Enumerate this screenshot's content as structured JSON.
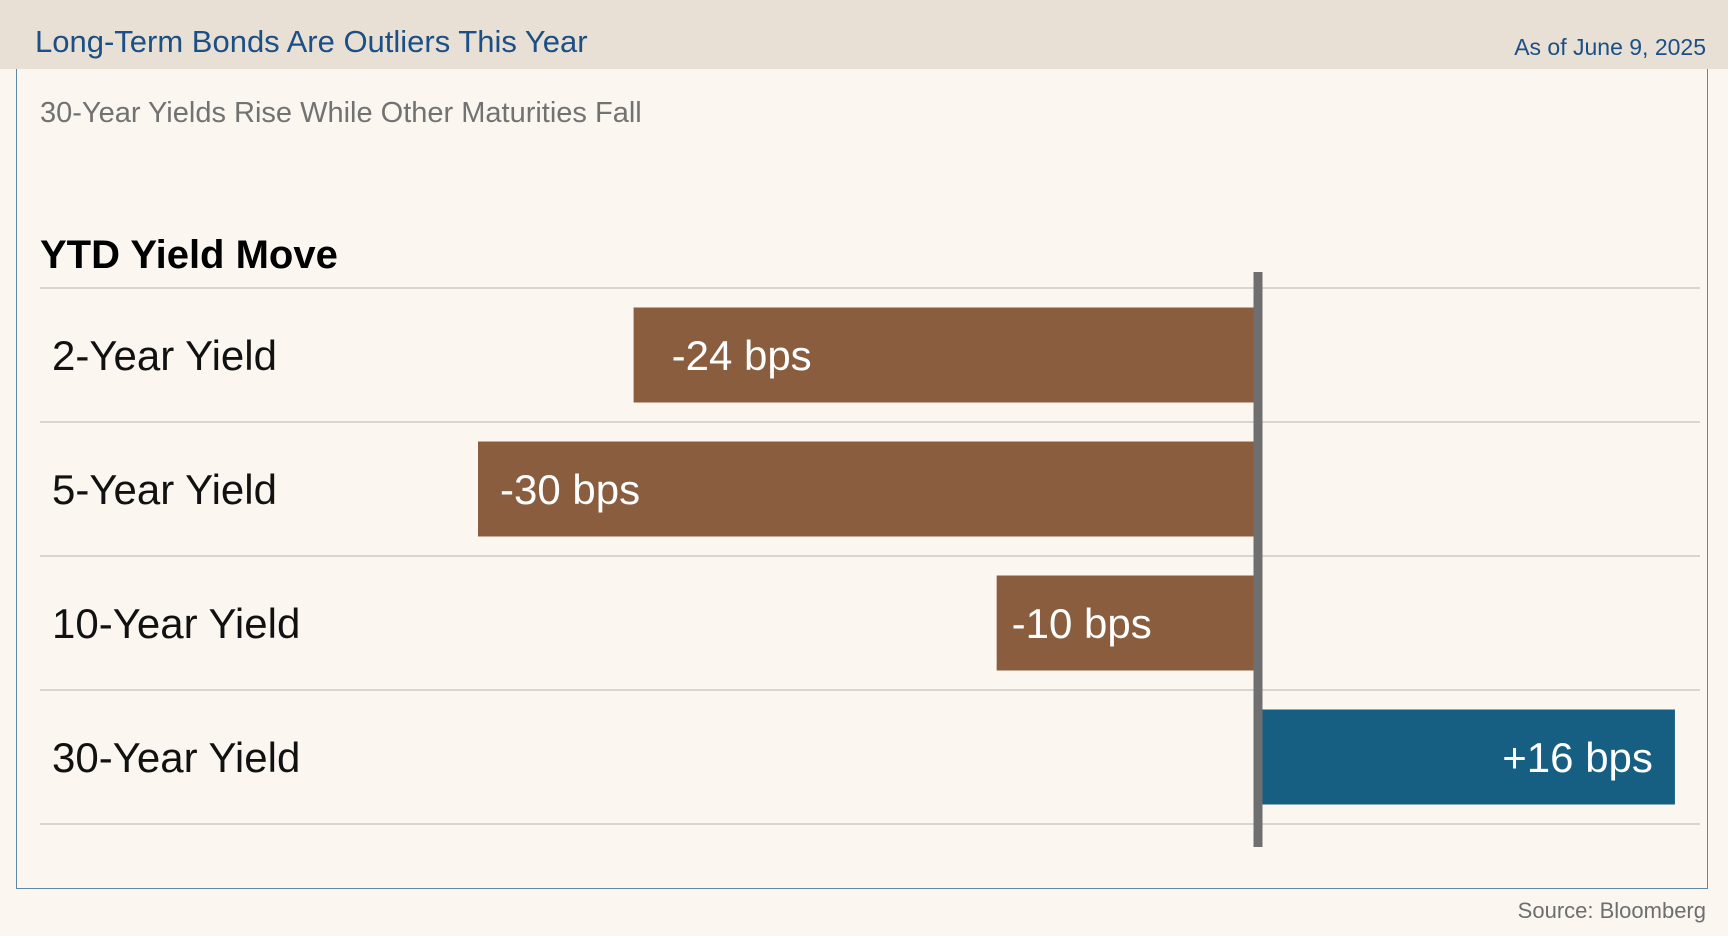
{
  "header": {
    "title": "Long-Term Bonds Are Outliers This Year",
    "date": "As of June 9, 2025"
  },
  "subtitle": "30-Year Yields Rise While Other Maturities Fall",
  "source": "Source: Bloomberg",
  "colors": {
    "negative": "#8a5d3e",
    "positive": "#175f82",
    "axis": "#6f6f6f",
    "gridline": "#d8d6d2"
  },
  "chart_data": {
    "type": "bar",
    "orientation": "horizontal",
    "title": "YTD Yield Move",
    "categories": [
      "2-Year Yield",
      "5-Year Yield",
      "10-Year Yield",
      "30-Year Yield"
    ],
    "values": [
      -24,
      -30,
      -10,
      16
    ],
    "data_labels": [
      "-24 bps",
      "-30 bps",
      "-10 bps",
      "+16 bps"
    ],
    "unit": "bps",
    "xlim": [
      -30,
      16
    ],
    "grid": true,
    "legend": "none"
  }
}
